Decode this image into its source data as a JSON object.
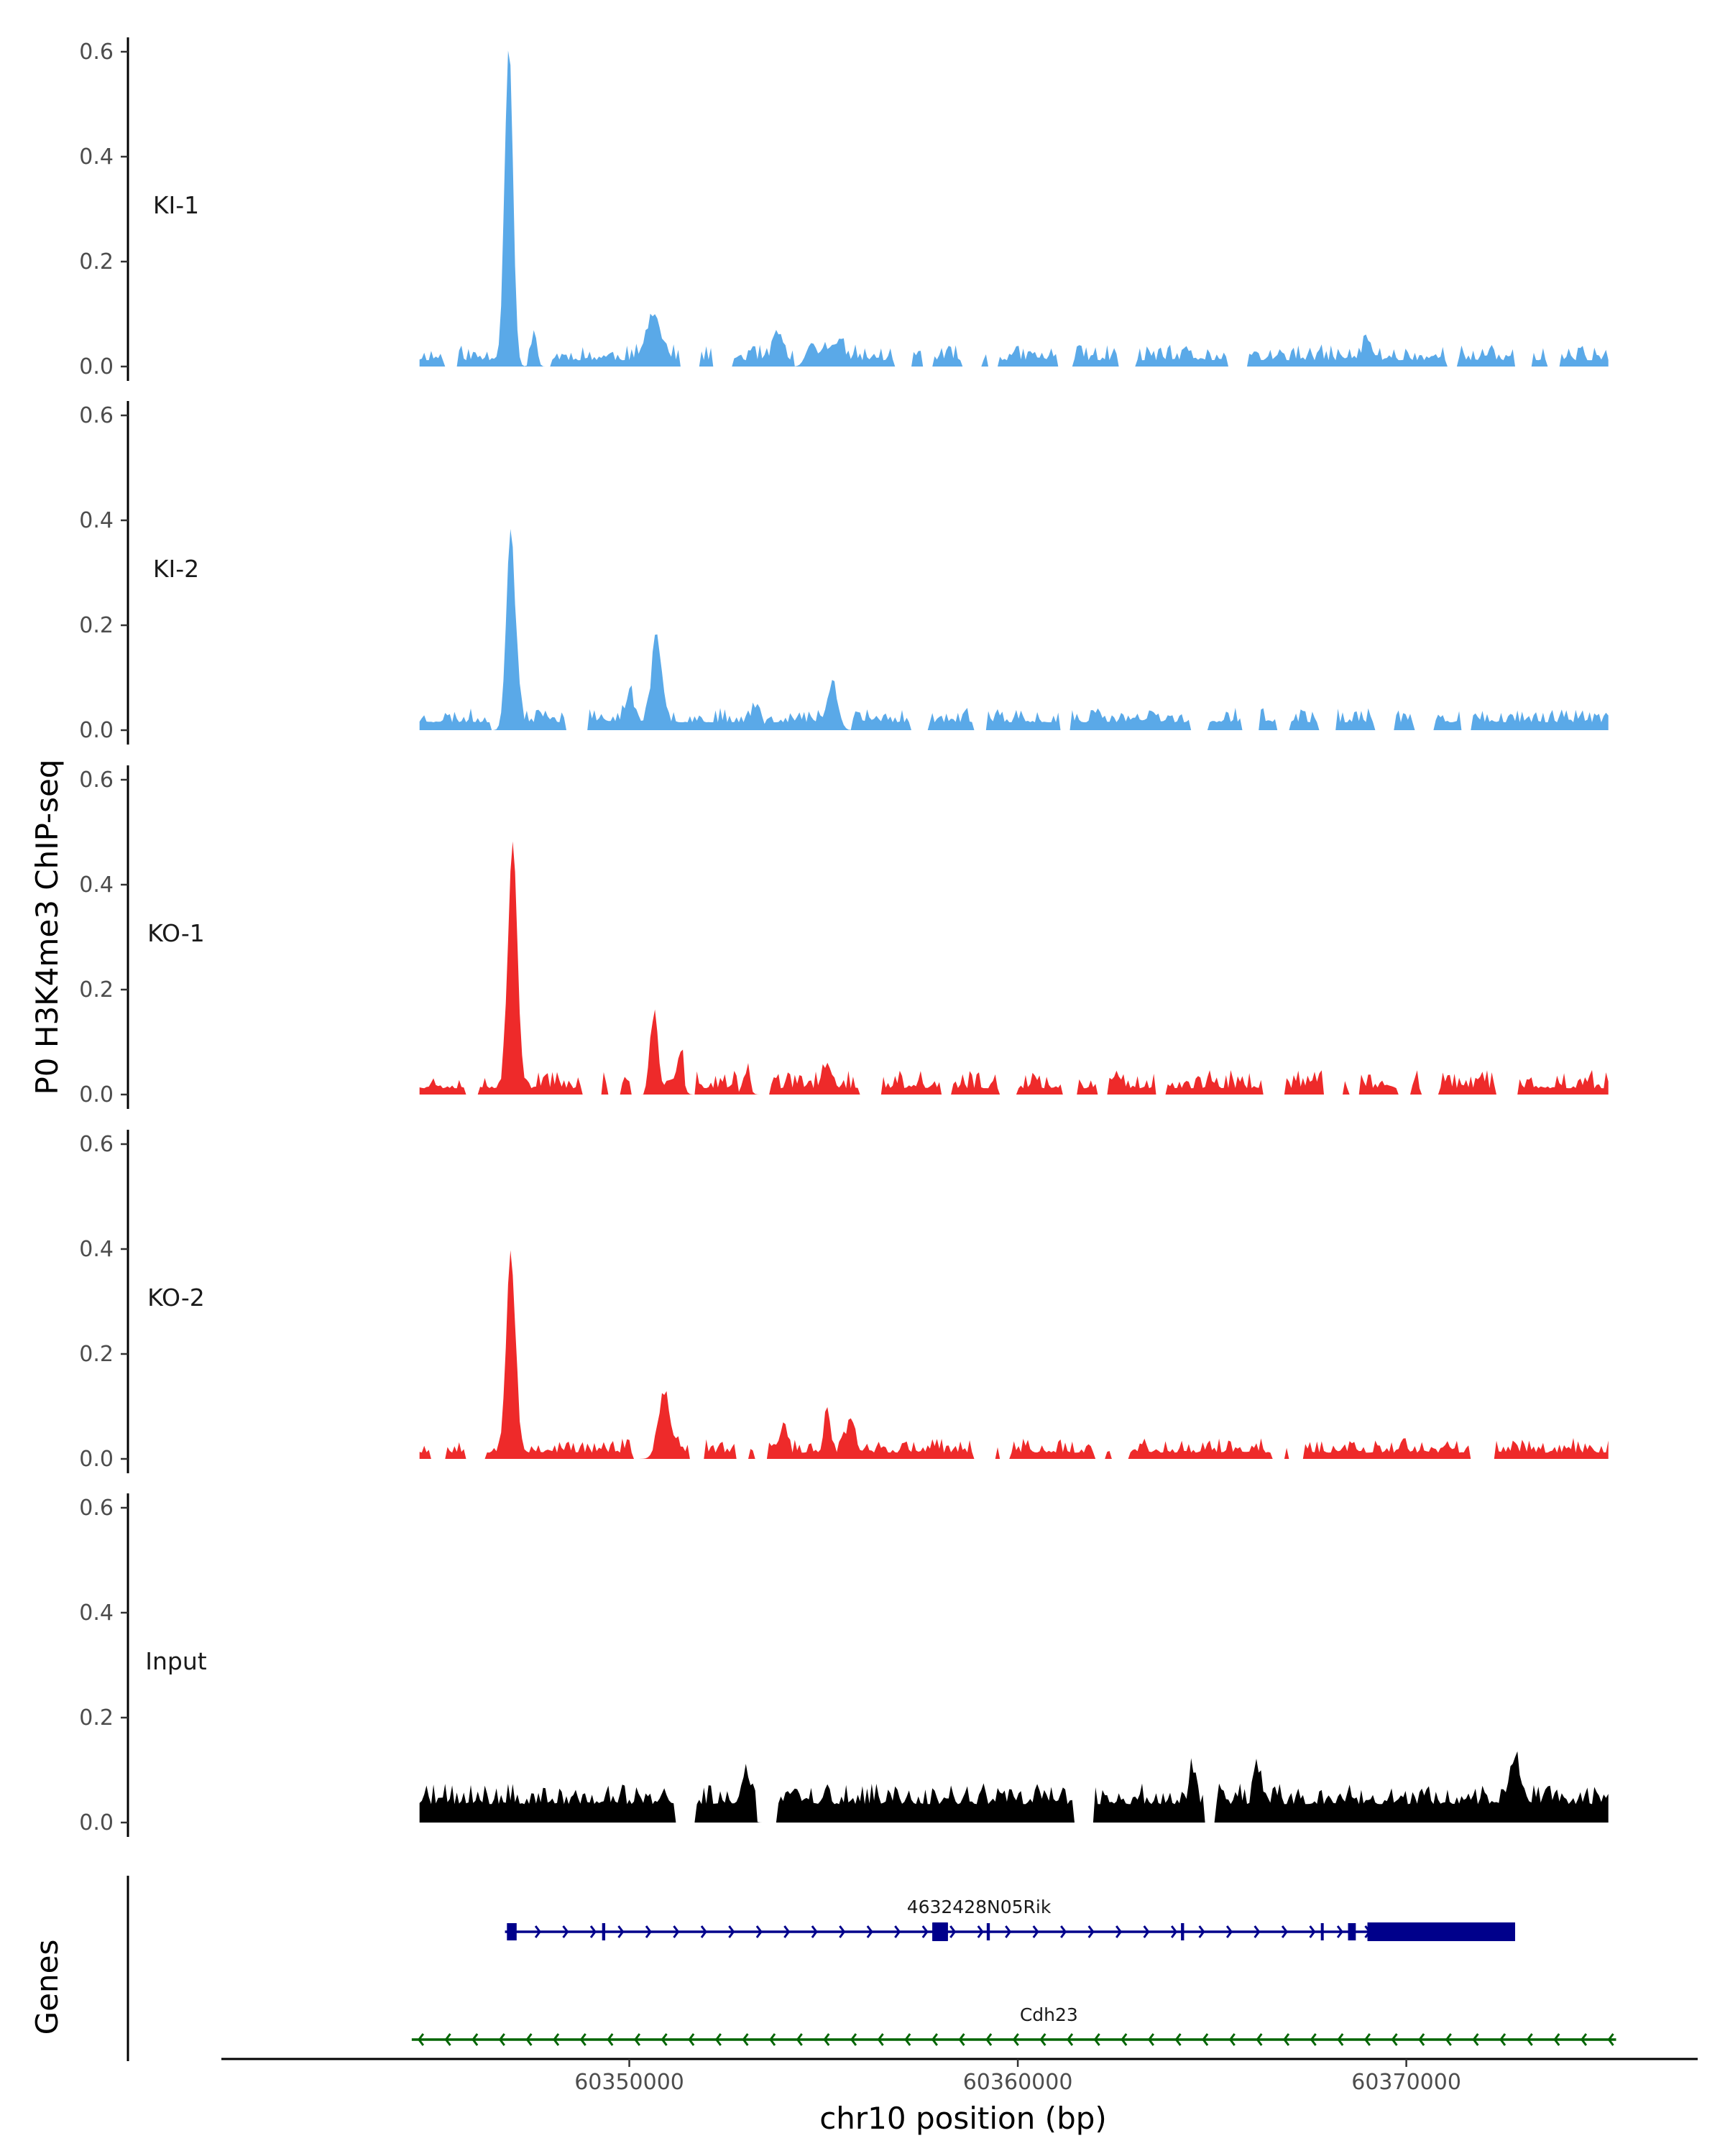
{
  "chart_data": {
    "type": "area",
    "ylabel": "P0 H3K4me3 ChIP-seq",
    "xlabel": "chr10 position (bp)",
    "genes_label": "Genes",
    "xlim": [
      60339500,
      60377500
    ],
    "ylim": [
      0,
      0.6
    ],
    "x_ticks": [
      60350000,
      60360000,
      60370000
    ],
    "x_tick_labels": [
      "60350000",
      "60360000",
      "60370000"
    ],
    "y_ticks": [
      0.0,
      0.2,
      0.4,
      0.6
    ],
    "y_tick_labels": [
      "0.0",
      "0.2",
      "0.4",
      "0.6"
    ],
    "x_start": 60344600,
    "x_end": 60375200,
    "colors": {
      "ki": "#5aa9e8",
      "ko": "#ee2a2a",
      "input": "#000000",
      "gene_plus": "#00008b",
      "gene_minus": "#006400",
      "axis": "#000000"
    },
    "tracks": [
      {
        "name": "KI-1",
        "color": "#5aa9e8",
        "peaks": [
          [
            60346900,
            0.6,
            300
          ],
          [
            60347550,
            0.07,
            200
          ],
          [
            60350650,
            0.1,
            480
          ],
          [
            60353850,
            0.045,
            300
          ],
          [
            60354700,
            0.045,
            400
          ],
          [
            60355300,
            0.03,
            500
          ],
          [
            60369000,
            0.03,
            350
          ]
        ],
        "baseline": 0.012,
        "noise": 0.03,
        "seed": 11,
        "gap": 0.35
      },
      {
        "name": "KI-2",
        "color": "#5aa9e8",
        "peaks": [
          [
            60346950,
            0.385,
            320
          ],
          [
            60350700,
            0.15,
            350
          ],
          [
            60350000,
            0.05,
            300
          ],
          [
            60355250,
            0.075,
            380
          ],
          [
            60353300,
            0.05,
            300
          ]
        ],
        "baseline": 0.015,
        "noise": 0.028,
        "seed": 23,
        "gap": 0.3
      },
      {
        "name": "KO-1",
        "color": "#ee2a2a",
        "peaks": [
          [
            60347000,
            0.47,
            330
          ],
          [
            60350650,
            0.15,
            240
          ],
          [
            60351300,
            0.06,
            250
          ],
          [
            60353000,
            0.04,
            250
          ],
          [
            60355100,
            0.045,
            300
          ]
        ],
        "baseline": 0.012,
        "noise": 0.035,
        "seed": 37,
        "gap": 0.3
      },
      {
        "name": "KO-2",
        "color": "#ee2a2a",
        "peaks": [
          [
            60346950,
            0.37,
            330
          ],
          [
            60350900,
            0.1,
            450
          ],
          [
            60353950,
            0.05,
            200
          ],
          [
            60355100,
            0.08,
            220
          ],
          [
            60355700,
            0.065,
            300
          ]
        ],
        "baseline": 0.012,
        "noise": 0.028,
        "seed": 53,
        "gap": 0.28
      },
      {
        "name": "Input",
        "color": "#000000",
        "peaks": [
          [
            60372800,
            0.07,
            450
          ],
          [
            60366200,
            0.06,
            250
          ],
          [
            60364500,
            0.06,
            200
          ],
          [
            60353000,
            0.06,
            300
          ]
        ],
        "baseline": 0.035,
        "noise": 0.04,
        "seed": 71,
        "gap": 0.04
      }
    ],
    "genes": [
      {
        "name": "4632428N05Rik",
        "strand": "+",
        "start": 60346800,
        "end": 60372800,
        "color": "#00008b",
        "exons": [
          [
            60346850,
            60347100
          ],
          [
            60349300,
            60349380
          ],
          [
            60357800,
            60358200
          ],
          [
            60359200,
            60359280
          ],
          [
            60364200,
            60364280
          ],
          [
            60367800,
            60367850
          ],
          [
            60368500,
            60368700
          ],
          [
            60369000,
            60372800
          ]
        ],
        "thick": [
          [
            60357800,
            60358200
          ],
          [
            60369000,
            60372800
          ]
        ]
      },
      {
        "name": "Cdh23",
        "strand": "-",
        "start": 60344400,
        "end": 60375400,
        "color": "#006400",
        "exons": [],
        "thick": []
      }
    ]
  }
}
